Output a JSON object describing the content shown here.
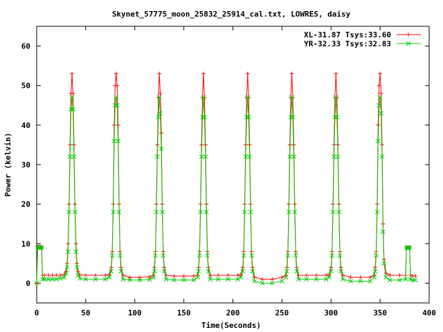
{
  "chart_data": {
    "type": "line",
    "title": "Skynet_57775_moon_25832_25914_cal.txt, LOWRES, daisy",
    "xlabel": "Time(Seconds)",
    "ylabel": "Power (kelvin)",
    "xlim": [
      0,
      400
    ],
    "ylim": [
      -5,
      65
    ],
    "xticks": [
      0,
      50,
      100,
      150,
      200,
      250,
      300,
      350,
      400
    ],
    "yticks": [
      0,
      10,
      20,
      30,
      40,
      50,
      60
    ],
    "grid": false,
    "legend_position": "top-right",
    "series": [
      {
        "name": "XL-31.87 Tsys:33.60",
        "color": "#ff0000",
        "marker": "plus",
        "points": [
          [
            0,
            0
          ],
          [
            1,
            9.2
          ],
          [
            2,
            9.2
          ],
          [
            3,
            9.2
          ],
          [
            4,
            9.2
          ],
          [
            5,
            9.0
          ],
          [
            6,
            2.0
          ],
          [
            8,
            2.0
          ],
          [
            12,
            2.0
          ],
          [
            16,
            2.0
          ],
          [
            20,
            2.0
          ],
          [
            24,
            2.0
          ],
          [
            28,
            2.2
          ],
          [
            30,
            3.0
          ],
          [
            31,
            5.0
          ],
          [
            32,
            10.0
          ],
          [
            33,
            20.0
          ],
          [
            34,
            35.0
          ],
          [
            35,
            48.0
          ],
          [
            36,
            53.0
          ],
          [
            37,
            48.0
          ],
          [
            38,
            35.0
          ],
          [
            39,
            20.0
          ],
          [
            40,
            10.0
          ],
          [
            41,
            5.0
          ],
          [
            42,
            3.0
          ],
          [
            44,
            2.1
          ],
          [
            50,
            2.0
          ],
          [
            60,
            2.0
          ],
          [
            70,
            2.0
          ],
          [
            74,
            2.2
          ],
          [
            76,
            4.0
          ],
          [
            77,
            8.0
          ],
          [
            78,
            20.0
          ],
          [
            79,
            40.0
          ],
          [
            80,
            50.0
          ],
          [
            81,
            53.0
          ],
          [
            82,
            50.0
          ],
          [
            83,
            40.0
          ],
          [
            84,
            20.0
          ],
          [
            85,
            8.0
          ],
          [
            86,
            4.0
          ],
          [
            88,
            2.0
          ],
          [
            95,
            1.5
          ],
          [
            105,
            1.5
          ],
          [
            115,
            1.6
          ],
          [
            119,
            2.0
          ],
          [
            120,
            4.0
          ],
          [
            121,
            8.0
          ],
          [
            122,
            20.0
          ],
          [
            123,
            35.0
          ],
          [
            124,
            47.0
          ],
          [
            125,
            53.0
          ],
          [
            126,
            48.0
          ],
          [
            127,
            38.0
          ],
          [
            128,
            20.0
          ],
          [
            129,
            8.0
          ],
          [
            130,
            4.0
          ],
          [
            132,
            2.0
          ],
          [
            140,
            1.8
          ],
          [
            150,
            1.8
          ],
          [
            160,
            1.8
          ],
          [
            164,
            2.0
          ],
          [
            165,
            4.0
          ],
          [
            166,
            8.0
          ],
          [
            167,
            20.0
          ],
          [
            168,
            35.0
          ],
          [
            169,
            47.0
          ],
          [
            170,
            53.0
          ],
          [
            171,
            47.0
          ],
          [
            172,
            35.0
          ],
          [
            173,
            20.0
          ],
          [
            174,
            8.0
          ],
          [
            175,
            4.0
          ],
          [
            177,
            2.0
          ],
          [
            185,
            2.0
          ],
          [
            195,
            2.0
          ],
          [
            205,
            2.0
          ],
          [
            208,
            2.2
          ],
          [
            210,
            4.0
          ],
          [
            211,
            8.0
          ],
          [
            212,
            20.0
          ],
          [
            213,
            35.0
          ],
          [
            214,
            47.0
          ],
          [
            215,
            53.0
          ],
          [
            216,
            47.0
          ],
          [
            217,
            35.0
          ],
          [
            218,
            20.0
          ],
          [
            219,
            8.0
          ],
          [
            220,
            4.0
          ],
          [
            222,
            1.5
          ],
          [
            230,
            1.0
          ],
          [
            240,
            1.0
          ],
          [
            250,
            1.5
          ],
          [
            254,
            2.0
          ],
          [
            255,
            4.0
          ],
          [
            256,
            8.0
          ],
          [
            257,
            20.0
          ],
          [
            258,
            35.0
          ],
          [
            259,
            47.0
          ],
          [
            260,
            53.0
          ],
          [
            261,
            47.0
          ],
          [
            262,
            35.0
          ],
          [
            263,
            20.0
          ],
          [
            264,
            8.0
          ],
          [
            265,
            4.0
          ],
          [
            267,
            2.0
          ],
          [
            275,
            2.0
          ],
          [
            285,
            2.0
          ],
          [
            295,
            2.0
          ],
          [
            298,
            2.2
          ],
          [
            300,
            4.0
          ],
          [
            301,
            8.0
          ],
          [
            302,
            20.0
          ],
          [
            303,
            35.0
          ],
          [
            304,
            47.0
          ],
          [
            305,
            53.0
          ],
          [
            306,
            47.0
          ],
          [
            307,
            35.0
          ],
          [
            308,
            20.0
          ],
          [
            309,
            8.0
          ],
          [
            310,
            4.0
          ],
          [
            312,
            2.0
          ],
          [
            320,
            1.5
          ],
          [
            330,
            1.5
          ],
          [
            340,
            1.5
          ],
          [
            344,
            2.0
          ],
          [
            345,
            4.0
          ],
          [
            346,
            8.0
          ],
          [
            347,
            20.0
          ],
          [
            348,
            40.0
          ],
          [
            349,
            50.0
          ],
          [
            350,
            53.0
          ],
          [
            351,
            48.0
          ],
          [
            352,
            35.0
          ],
          [
            353,
            15.0
          ],
          [
            354,
            6.0
          ],
          [
            356,
            2.5
          ],
          [
            360,
            2.0
          ],
          [
            370,
            2.0
          ],
          [
            376,
            2.0
          ],
          [
            377,
            9.0
          ],
          [
            378,
            9.0
          ],
          [
            379,
            9.0
          ],
          [
            380,
            9.0
          ],
          [
            381,
            2.0
          ],
          [
            383,
            1.8
          ],
          [
            386,
            1.8
          ]
        ]
      },
      {
        "name": "YR-32.33 Tsys:32.83",
        "color": "#00cc00",
        "marker": "x",
        "points": [
          [
            0,
            0
          ],
          [
            1,
            9.0
          ],
          [
            2,
            9.0
          ],
          [
            3,
            9.0
          ],
          [
            4,
            9.0
          ],
          [
            5,
            9.0
          ],
          [
            6,
            1.0
          ],
          [
            8,
            1.0
          ],
          [
            12,
            1.0
          ],
          [
            16,
            1.0
          ],
          [
            20,
            1.0
          ],
          [
            24,
            1.2
          ],
          [
            28,
            1.5
          ],
          [
            30,
            2.5
          ],
          [
            31,
            4.0
          ],
          [
            32,
            8.0
          ],
          [
            33,
            18.0
          ],
          [
            34,
            32.0
          ],
          [
            35,
            44.0
          ],
          [
            36,
            47.0
          ],
          [
            37,
            44.0
          ],
          [
            38,
            32.0
          ],
          [
            39,
            18.0
          ],
          [
            40,
            8.0
          ],
          [
            41,
            4.0
          ],
          [
            42,
            2.0
          ],
          [
            44,
            1.2
          ],
          [
            50,
            1.0
          ],
          [
            60,
            1.0
          ],
          [
            70,
            1.0
          ],
          [
            74,
            1.5
          ],
          [
            76,
            3.0
          ],
          [
            77,
            7.0
          ],
          [
            78,
            18.0
          ],
          [
            79,
            36.0
          ],
          [
            80,
            45.0
          ],
          [
            81,
            47.0
          ],
          [
            82,
            45.0
          ],
          [
            83,
            36.0
          ],
          [
            84,
            18.0
          ],
          [
            85,
            7.0
          ],
          [
            86,
            3.0
          ],
          [
            88,
            1.0
          ],
          [
            95,
            0.8
          ],
          [
            105,
            0.8
          ],
          [
            115,
            0.9
          ],
          [
            119,
            1.5
          ],
          [
            120,
            3.0
          ],
          [
            121,
            7.0
          ],
          [
            122,
            18.0
          ],
          [
            123,
            32.0
          ],
          [
            124,
            42.0
          ],
          [
            125,
            47.0
          ],
          [
            126,
            43.0
          ],
          [
            127,
            34.0
          ],
          [
            128,
            18.0
          ],
          [
            129,
            7.0
          ],
          [
            130,
            3.0
          ],
          [
            132,
            1.0
          ],
          [
            140,
            0.8
          ],
          [
            150,
            0.8
          ],
          [
            160,
            0.8
          ],
          [
            164,
            1.5
          ],
          [
            165,
            3.0
          ],
          [
            166,
            7.0
          ],
          [
            167,
            18.0
          ],
          [
            168,
            32.0
          ],
          [
            169,
            42.0
          ],
          [
            170,
            47.0
          ],
          [
            171,
            42.0
          ],
          [
            172,
            32.0
          ],
          [
            173,
            18.0
          ],
          [
            174,
            7.0
          ],
          [
            175,
            3.0
          ],
          [
            177,
            1.0
          ],
          [
            185,
            1.0
          ],
          [
            195,
            1.0
          ],
          [
            205,
            1.0
          ],
          [
            208,
            1.5
          ],
          [
            210,
            3.0
          ],
          [
            211,
            7.0
          ],
          [
            212,
            18.0
          ],
          [
            213,
            32.0
          ],
          [
            214,
            42.0
          ],
          [
            215,
            47.0
          ],
          [
            216,
            42.0
          ],
          [
            217,
            32.0
          ],
          [
            218,
            18.0
          ],
          [
            219,
            7.0
          ],
          [
            220,
            3.0
          ],
          [
            222,
            0.5
          ],
          [
            230,
            0.0
          ],
          [
            240,
            0.0
          ],
          [
            250,
            0.5
          ],
          [
            254,
            1.5
          ],
          [
            255,
            3.0
          ],
          [
            256,
            7.0
          ],
          [
            257,
            18.0
          ],
          [
            258,
            32.0
          ],
          [
            259,
            42.0
          ],
          [
            260,
            47.0
          ],
          [
            261,
            42.0
          ],
          [
            262,
            32.0
          ],
          [
            263,
            18.0
          ],
          [
            264,
            7.0
          ],
          [
            265,
            3.0
          ],
          [
            267,
            1.0
          ],
          [
            275,
            1.0
          ],
          [
            285,
            1.0
          ],
          [
            295,
            1.0
          ],
          [
            298,
            1.5
          ],
          [
            300,
            3.0
          ],
          [
            301,
            7.0
          ],
          [
            302,
            18.0
          ],
          [
            303,
            32.0
          ],
          [
            304,
            42.0
          ],
          [
            305,
            47.0
          ],
          [
            306,
            42.0
          ],
          [
            307,
            32.0
          ],
          [
            308,
            18.0
          ],
          [
            309,
            7.0
          ],
          [
            310,
            3.0
          ],
          [
            312,
            1.0
          ],
          [
            320,
            0.5
          ],
          [
            330,
            0.5
          ],
          [
            340,
            0.5
          ],
          [
            344,
            1.5
          ],
          [
            345,
            3.0
          ],
          [
            346,
            7.0
          ],
          [
            347,
            18.0
          ],
          [
            348,
            36.0
          ],
          [
            349,
            45.0
          ],
          [
            350,
            47.0
          ],
          [
            351,
            43.0
          ],
          [
            352,
            32.0
          ],
          [
            353,
            13.0
          ],
          [
            354,
            5.0
          ],
          [
            356,
            1.5
          ],
          [
            360,
            0.8
          ],
          [
            370,
            0.8
          ],
          [
            376,
            1.0
          ],
          [
            377,
            9.0
          ],
          [
            378,
            9.0
          ],
          [
            379,
            9.0
          ],
          [
            380,
            9.0
          ],
          [
            381,
            1.0
          ],
          [
            383,
            0.8
          ],
          [
            386,
            0.8
          ]
        ]
      }
    ]
  }
}
